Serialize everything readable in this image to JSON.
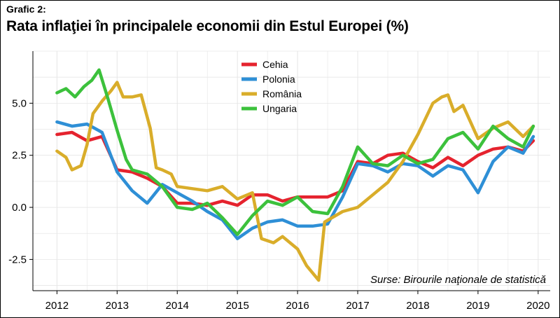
{
  "header": {
    "kicker": "Grafic 2:",
    "title": "Rata inflaţiei în principalele economii din Estul Europei (%)"
  },
  "source_note": "Surse: Birourile naţionale de statistică",
  "colors": {
    "Cehia": "#e5232e",
    "Polonia": "#2e8fd6",
    "România": "#d9ad2a",
    "Ungaria": "#3cc13c",
    "grid": "#e6e6e6",
    "axis": "#000000"
  },
  "chart_data": {
    "type": "line",
    "title": "Rata inflaţiei în principalele economii din Estul Europei (%)",
    "xlabel": "",
    "ylabel": "",
    "xlim": [
      2011.6,
      2020.2
    ],
    "ylim": [
      -4,
      7.5
    ],
    "x_ticks": [
      2012,
      2013,
      2014,
      2015,
      2016,
      2017,
      2018,
      2019,
      2020
    ],
    "y_ticks": [
      {
        "value": 5.0,
        "label": "5.0"
      },
      {
        "value": 2.5,
        "label": "2.5"
      },
      {
        "value": 0.0,
        "label": "0.0"
      },
      {
        "value": -2.5,
        "label": "-2.5"
      }
    ],
    "grid": true,
    "legend_position": "top-center",
    "series": [
      {
        "name": "Cehia",
        "points": [
          [
            2012.0,
            3.5
          ],
          [
            2012.25,
            3.6
          ],
          [
            2012.5,
            3.2
          ],
          [
            2012.75,
            3.4
          ],
          [
            2013.0,
            1.8
          ],
          [
            2013.25,
            1.7
          ],
          [
            2013.5,
            1.4
          ],
          [
            2013.75,
            1.0
          ],
          [
            2014.0,
            0.2
          ],
          [
            2014.25,
            0.2
          ],
          [
            2014.5,
            0.1
          ],
          [
            2014.75,
            0.3
          ],
          [
            2015.0,
            0.1
          ],
          [
            2015.25,
            0.6
          ],
          [
            2015.5,
            0.6
          ],
          [
            2015.75,
            0.3
          ],
          [
            2016.0,
            0.5
          ],
          [
            2016.25,
            0.5
          ],
          [
            2016.5,
            0.5
          ],
          [
            2016.75,
            0.8
          ],
          [
            2017.0,
            2.2
          ],
          [
            2017.25,
            2.1
          ],
          [
            2017.5,
            2.5
          ],
          [
            2017.75,
            2.6
          ],
          [
            2018.0,
            2.2
          ],
          [
            2018.25,
            1.9
          ],
          [
            2018.5,
            2.4
          ],
          [
            2018.75,
            2.0
          ],
          [
            2019.0,
            2.5
          ],
          [
            2019.25,
            2.8
          ],
          [
            2019.5,
            2.9
          ],
          [
            2019.75,
            2.7
          ],
          [
            2019.92,
            3.2
          ]
        ]
      },
      {
        "name": "Polonia",
        "points": [
          [
            2012.0,
            4.1
          ],
          [
            2012.25,
            3.9
          ],
          [
            2012.5,
            4.0
          ],
          [
            2012.75,
            3.6
          ],
          [
            2013.0,
            1.7
          ],
          [
            2013.25,
            0.8
          ],
          [
            2013.5,
            0.2
          ],
          [
            2013.75,
            1.1
          ],
          [
            2014.0,
            0.7
          ],
          [
            2014.25,
            0.3
          ],
          [
            2014.5,
            -0.2
          ],
          [
            2014.75,
            -0.6
          ],
          [
            2015.0,
            -1.5
          ],
          [
            2015.25,
            -1.0
          ],
          [
            2015.5,
            -0.7
          ],
          [
            2015.75,
            -0.6
          ],
          [
            2016.0,
            -0.9
          ],
          [
            2016.25,
            -0.9
          ],
          [
            2016.5,
            -0.8
          ],
          [
            2016.75,
            0.5
          ],
          [
            2017.0,
            2.1
          ],
          [
            2017.25,
            2.0
          ],
          [
            2017.5,
            1.7
          ],
          [
            2017.75,
            2.1
          ],
          [
            2018.0,
            2.0
          ],
          [
            2018.25,
            1.5
          ],
          [
            2018.5,
            2.0
          ],
          [
            2018.75,
            1.8
          ],
          [
            2019.0,
            0.7
          ],
          [
            2019.25,
            2.2
          ],
          [
            2019.5,
            2.9
          ],
          [
            2019.75,
            2.6
          ],
          [
            2019.92,
            3.4
          ]
        ]
      },
      {
        "name": "România",
        "points": [
          [
            2012.0,
            2.7
          ],
          [
            2012.15,
            2.4
          ],
          [
            2012.25,
            1.8
          ],
          [
            2012.4,
            2.0
          ],
          [
            2012.5,
            3.0
          ],
          [
            2012.6,
            4.5
          ],
          [
            2012.75,
            5.1
          ],
          [
            2012.9,
            5.6
          ],
          [
            2013.0,
            6.0
          ],
          [
            2013.1,
            5.3
          ],
          [
            2013.25,
            5.3
          ],
          [
            2013.4,
            5.4
          ],
          [
            2013.55,
            3.8
          ],
          [
            2013.65,
            1.9
          ],
          [
            2013.75,
            1.8
          ],
          [
            2013.9,
            1.6
          ],
          [
            2014.0,
            1.0
          ],
          [
            2014.25,
            0.9
          ],
          [
            2014.5,
            0.8
          ],
          [
            2014.75,
            1.0
          ],
          [
            2015.0,
            0.4
          ],
          [
            2015.25,
            0.7
          ],
          [
            2015.4,
            -1.5
          ],
          [
            2015.6,
            -1.7
          ],
          [
            2015.75,
            -1.4
          ],
          [
            2016.0,
            -2.0
          ],
          [
            2016.15,
            -2.8
          ],
          [
            2016.35,
            -3.5
          ],
          [
            2016.45,
            -0.7
          ],
          [
            2016.75,
            -0.2
          ],
          [
            2017.0,
            0.0
          ],
          [
            2017.25,
            0.6
          ],
          [
            2017.5,
            1.2
          ],
          [
            2017.75,
            2.2
          ],
          [
            2018.0,
            3.5
          ],
          [
            2018.25,
            5.0
          ],
          [
            2018.4,
            5.3
          ],
          [
            2018.5,
            5.4
          ],
          [
            2018.6,
            4.6
          ],
          [
            2018.75,
            4.9
          ],
          [
            2019.0,
            3.3
          ],
          [
            2019.25,
            3.8
          ],
          [
            2019.5,
            4.1
          ],
          [
            2019.75,
            3.4
          ],
          [
            2019.92,
            3.9
          ]
        ]
      },
      {
        "name": "Ungaria",
        "points": [
          [
            2012.0,
            5.5
          ],
          [
            2012.15,
            5.7
          ],
          [
            2012.3,
            5.3
          ],
          [
            2012.45,
            5.8
          ],
          [
            2012.58,
            6.1
          ],
          [
            2012.7,
            6.6
          ],
          [
            2012.85,
            5.2
          ],
          [
            2013.0,
            3.7
          ],
          [
            2013.15,
            2.3
          ],
          [
            2013.25,
            1.8
          ],
          [
            2013.5,
            1.6
          ],
          [
            2013.75,
            1.0
          ],
          [
            2014.0,
            0.0
          ],
          [
            2014.25,
            -0.1
          ],
          [
            2014.5,
            0.2
          ],
          [
            2014.75,
            -0.5
          ],
          [
            2015.0,
            -1.3
          ],
          [
            2015.25,
            -0.4
          ],
          [
            2015.5,
            0.3
          ],
          [
            2015.75,
            0.1
          ],
          [
            2016.0,
            0.5
          ],
          [
            2016.25,
            -0.2
          ],
          [
            2016.5,
            -0.3
          ],
          [
            2016.75,
            1.0
          ],
          [
            2017.0,
            2.9
          ],
          [
            2017.25,
            2.1
          ],
          [
            2017.5,
            2.0
          ],
          [
            2017.75,
            2.5
          ],
          [
            2018.0,
            2.1
          ],
          [
            2018.25,
            2.3
          ],
          [
            2018.5,
            3.3
          ],
          [
            2018.75,
            3.6
          ],
          [
            2019.0,
            2.8
          ],
          [
            2019.25,
            3.9
          ],
          [
            2019.5,
            3.3
          ],
          [
            2019.75,
            2.9
          ],
          [
            2019.92,
            3.9
          ]
        ]
      }
    ]
  }
}
